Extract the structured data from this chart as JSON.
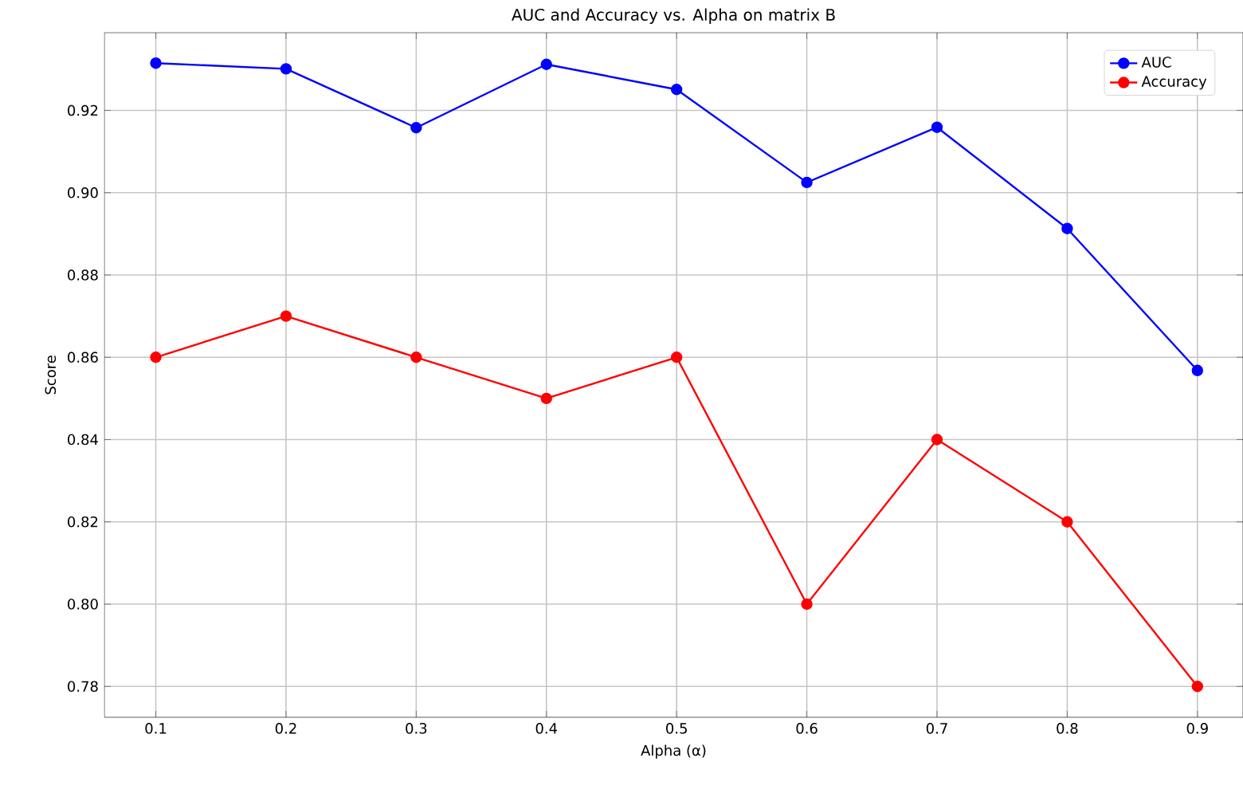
{
  "chart_data": {
    "type": "line",
    "title": "AUC and Accuracy vs. Alpha on matrix B",
    "xlabel": "Alpha (α)",
    "ylabel": "Score",
    "x": [
      0.1,
      0.2,
      0.3,
      0.4,
      0.5,
      0.6,
      0.7,
      0.8,
      0.9
    ],
    "series": [
      {
        "name": "AUC",
        "color": "#0000ff",
        "values": [
          0.9315,
          0.9301,
          0.9158,
          0.9312,
          0.9251,
          0.9025,
          0.9159,
          0.8913,
          0.8568
        ]
      },
      {
        "name": "Accuracy",
        "color": "#ff0000",
        "values": [
          0.86,
          0.87,
          0.86,
          0.85,
          0.86,
          0.8,
          0.84,
          0.82,
          0.78
        ]
      }
    ],
    "xlim": [
      0.0605,
      0.935
    ],
    "ylim": [
      0.7725,
      0.9389
    ],
    "xticks": [
      {
        "value": 0.1,
        "label": "0.1"
      },
      {
        "value": 0.2,
        "label": "0.2"
      },
      {
        "value": 0.3,
        "label": "0.3"
      },
      {
        "value": 0.4,
        "label": "0.4"
      },
      {
        "value": 0.5,
        "label": "0.5"
      },
      {
        "value": 0.6,
        "label": "0.6"
      },
      {
        "value": 0.7,
        "label": "0.7"
      },
      {
        "value": 0.8,
        "label": "0.8"
      },
      {
        "value": 0.9,
        "label": "0.9"
      }
    ],
    "yticks": [
      {
        "value": 0.78,
        "label": "0.78"
      },
      {
        "value": 0.8,
        "label": "0.80"
      },
      {
        "value": 0.82,
        "label": "0.82"
      },
      {
        "value": 0.84,
        "label": "0.84"
      },
      {
        "value": 0.86,
        "label": "0.86"
      },
      {
        "value": 0.88,
        "label": "0.88"
      },
      {
        "value": 0.9,
        "label": "0.90"
      },
      {
        "value": 0.92,
        "label": "0.92"
      }
    ],
    "grid": true,
    "legend": "top right",
    "marker": "circle",
    "line_style": "solid"
  }
}
